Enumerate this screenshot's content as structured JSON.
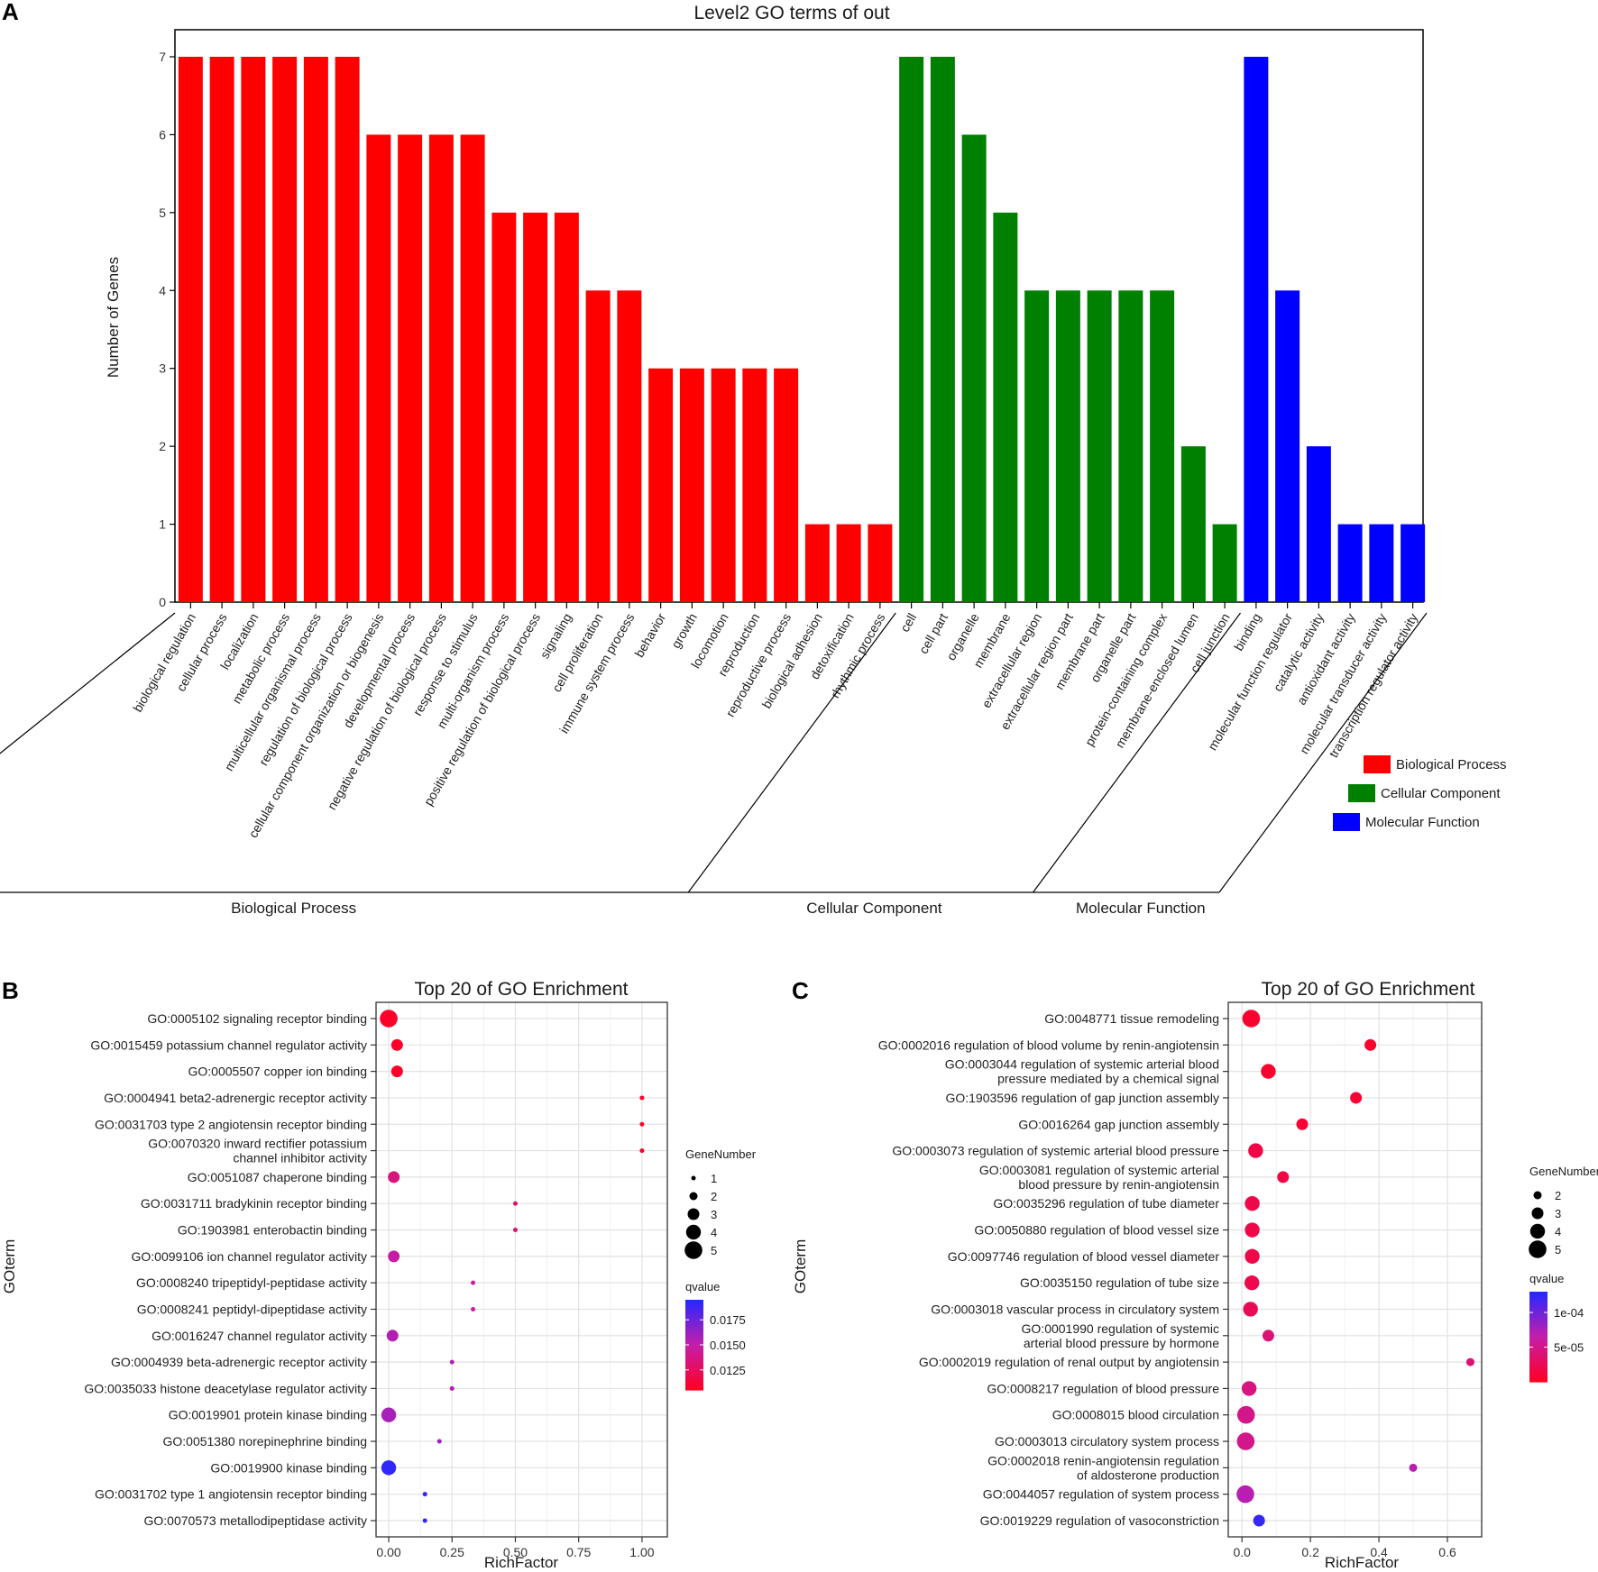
{
  "panels": {
    "a": "A",
    "b": "B",
    "c": "C"
  },
  "chart_data": [
    {
      "type": "bar",
      "title": "Level2 GO terms of out",
      "ylabel": "Number of Genes",
      "xlabel": "",
      "ylim": [
        0,
        7
      ],
      "yticks": [
        0,
        1,
        2,
        3,
        4,
        5,
        6,
        7
      ],
      "groups": [
        {
          "name": "Biological Process",
          "color": "#ff0000",
          "categories": [
            "biological regulation",
            "cellular process",
            "localization",
            "metabolic process",
            "multicellular organismal process",
            "regulation of biological process",
            "cellular component organization or biogenesis",
            "developmental process",
            "negative regulation of biological process",
            "response to stimulus",
            "multi-organism process",
            "positive regulation of biological process",
            "signaling",
            "cell proliferation",
            "immune system process",
            "behavior",
            "growth",
            "locomotion",
            "reproduction",
            "reproductive process",
            "biological adhesion",
            "detoxification",
            "rhythmic process"
          ],
          "values": [
            7,
            7,
            7,
            7,
            7,
            7,
            6,
            6,
            6,
            6,
            5,
            5,
            5,
            4,
            4,
            3,
            3,
            3,
            3,
            3,
            1,
            1,
            1
          ]
        },
        {
          "name": "Cellular Component",
          "color": "#008000",
          "categories": [
            "cell",
            "cell part",
            "organelle",
            "membrane",
            "extracellular region",
            "extracellular region part",
            "membrane part",
            "organelle part",
            "protein-containing complex",
            "membrane-enclosed lumen",
            "cell junction"
          ],
          "values": [
            7,
            7,
            6,
            5,
            4,
            4,
            4,
            4,
            4,
            2,
            1
          ]
        },
        {
          "name": "Molecular Function",
          "color": "#0000ff",
          "categories": [
            "binding",
            "molecular function regulator",
            "catalytic activity",
            "antioxidant activity",
            "molecular transducer activity",
            "transcription regulator activity"
          ],
          "values": [
            7,
            4,
            2,
            1,
            1,
            1
          ]
        }
      ],
      "legend": [
        "Biological Process",
        "Cellular Component",
        "Molecular Function"
      ],
      "legend_position": "right"
    },
    {
      "type": "scatter",
      "title": "Top 20 of GO Enrichment",
      "xlabel": "RichFactor",
      "ylabel": "GOterm",
      "xlim": [
        -0.05,
        1.1
      ],
      "xticks": [
        0.0,
        0.25,
        0.5,
        0.75,
        1.0
      ],
      "xtick_labels": [
        "0.00",
        "0.25",
        "0.50",
        "0.75",
        "1.00"
      ],
      "size_legend_title": "GeneNumber",
      "size_legend": [
        1,
        2,
        3,
        4,
        5
      ],
      "color_legend_title": "qvalue",
      "color_range": [
        0.0105,
        0.0195
      ],
      "color_ticks": [
        0.0175,
        0.015,
        0.0125
      ],
      "color_tick_labels": [
        "0.0175",
        "0.0150",
        "0.0125"
      ],
      "terms": [
        {
          "label": [
            "GO:0005102 signaling receptor binding"
          ],
          "x": 0.0,
          "size": 5,
          "q": 0.0107
        },
        {
          "label": [
            "GO:0015459 potassium channel regulator activity"
          ],
          "x": 0.033,
          "size": 3,
          "q": 0.0107
        },
        {
          "label": [
            "GO:0005507 copper ion binding"
          ],
          "x": 0.033,
          "size": 3,
          "q": 0.0107
        },
        {
          "label": [
            "GO:0004941 beta2-adrenergic receptor activity"
          ],
          "x": 1.0,
          "size": 1,
          "q": 0.0107
        },
        {
          "label": [
            "GO:0031703 type 2 angiotensin receptor binding"
          ],
          "x": 1.0,
          "size": 1,
          "q": 0.0107
        },
        {
          "label": [
            "GO:0070320 inward rectifier potassium",
            "channel inhibitor activity"
          ],
          "x": 1.0,
          "size": 1,
          "q": 0.0107
        },
        {
          "label": [
            "GO:0051087 chaperone binding"
          ],
          "x": 0.02,
          "size": 3,
          "q": 0.0135
        },
        {
          "label": [
            "GO:0031711 bradykinin receptor binding"
          ],
          "x": 0.5,
          "size": 1,
          "q": 0.0128
        },
        {
          "label": [
            "GO:1903981 enterobactin binding"
          ],
          "x": 0.5,
          "size": 1,
          "q": 0.0128
        },
        {
          "label": [
            "GO:0099106 ion channel regulator activity"
          ],
          "x": 0.02,
          "size": 3,
          "q": 0.0148
        },
        {
          "label": [
            "GO:0008240 tripeptidyl-peptidase activity"
          ],
          "x": 0.333,
          "size": 1,
          "q": 0.0148
        },
        {
          "label": [
            "GO:0008241 peptidyl-dipeptidase activity"
          ],
          "x": 0.333,
          "size": 1,
          "q": 0.0148
        },
        {
          "label": [
            "GO:0016247 channel regulator activity"
          ],
          "x": 0.015,
          "size": 3,
          "q": 0.0155
        },
        {
          "label": [
            "GO:0004939 beta-adrenergic receptor activity"
          ],
          "x": 0.25,
          "size": 1,
          "q": 0.0155
        },
        {
          "label": [
            "GO:0035033 histone deacetylase regulator activity"
          ],
          "x": 0.25,
          "size": 1,
          "q": 0.0155
        },
        {
          "label": [
            "GO:0019901 protein kinase binding"
          ],
          "x": 0.0,
          "size": 4,
          "q": 0.0158
        },
        {
          "label": [
            "GO:0051380 norepinephrine binding"
          ],
          "x": 0.2,
          "size": 1,
          "q": 0.0162
        },
        {
          "label": [
            "GO:0019900 kinase binding"
          ],
          "x": 0.0,
          "size": 4,
          "q": 0.0192
        },
        {
          "label": [
            "GO:0031702 type 1 angiotensin receptor binding"
          ],
          "x": 0.143,
          "size": 1,
          "q": 0.0192
        },
        {
          "label": [
            "GO:0070573 metallodipeptidase activity"
          ],
          "x": 0.143,
          "size": 1,
          "q": 0.0192
        }
      ]
    },
    {
      "type": "scatter",
      "title": "Top 20 of GO Enrichment",
      "xlabel": "RichFactor",
      "ylabel": "GOterm",
      "xlim": [
        -0.04,
        0.7
      ],
      "xticks": [
        0.0,
        0.2,
        0.4,
        0.6
      ],
      "xtick_labels": [
        "0.0",
        "0.2",
        "0.4",
        "0.6"
      ],
      "size_legend_title": "GeneNumber",
      "size_legend": [
        2,
        3,
        4,
        5
      ],
      "color_legend_title": "qvalue",
      "color_range": [
        0.0,
        0.00013
      ],
      "color_ticks": [
        0.0001,
        5e-05
      ],
      "color_tick_labels": [
        "1e-04",
        "5e-05"
      ],
      "terms": [
        {
          "label": [
            "GO:0048771 tissue remodeling"
          ],
          "x": 0.027,
          "size": 5,
          "q": 5e-06
        },
        {
          "label": [
            "GO:0002016 regulation of blood volume by renin-angiotensin"
          ],
          "x": 0.375,
          "size": 3,
          "q": 5e-06
        },
        {
          "label": [
            "GO:0003044 regulation of systemic arterial blood",
            "pressure mediated by a chemical signal"
          ],
          "x": 0.077,
          "size": 4,
          "q": 5e-06
        },
        {
          "label": [
            "GO:1903596 regulation of gap junction assembly"
          ],
          "x": 0.333,
          "size": 3,
          "q": 8e-06
        },
        {
          "label": [
            "GO:0016264 gap junction assembly"
          ],
          "x": 0.176,
          "size": 3,
          "q": 8e-06
        },
        {
          "label": [
            "GO:0003073 regulation of systemic arterial blood pressure"
          ],
          "x": 0.04,
          "size": 4,
          "q": 1.5e-05
        },
        {
          "label": [
            "GO:0003081 regulation of systemic arterial",
            "blood pressure by renin-angiotensin"
          ],
          "x": 0.12,
          "size": 3,
          "q": 1.5e-05
        },
        {
          "label": [
            "GO:0035296 regulation of tube diameter"
          ],
          "x": 0.03,
          "size": 4,
          "q": 1.8e-05
        },
        {
          "label": [
            "GO:0050880 regulation of blood vessel size"
          ],
          "x": 0.03,
          "size": 4,
          "q": 1.8e-05
        },
        {
          "label": [
            "GO:0097746 regulation of blood vessel diameter"
          ],
          "x": 0.03,
          "size": 4,
          "q": 1.8e-05
        },
        {
          "label": [
            "GO:0035150 regulation of tube size"
          ],
          "x": 0.029,
          "size": 4,
          "q": 2e-05
        },
        {
          "label": [
            "GO:0003018 vascular process in circulatory system"
          ],
          "x": 0.025,
          "size": 4,
          "q": 2.5e-05
        },
        {
          "label": [
            "GO:0001990 regulation of systemic",
            "arterial blood pressure by hormone"
          ],
          "x": 0.077,
          "size": 3,
          "q": 4e-05
        },
        {
          "label": [
            "GO:0002019 regulation of renal output by angiotensin"
          ],
          "x": 0.667,
          "size": 2,
          "q": 4e-05
        },
        {
          "label": [
            "GO:0008217 regulation of blood pressure"
          ],
          "x": 0.021,
          "size": 4,
          "q": 4.5e-05
        },
        {
          "label": [
            "GO:0008015 blood circulation"
          ],
          "x": 0.012,
          "size": 5,
          "q": 5e-05
        },
        {
          "label": [
            "GO:0003013 circulatory system process"
          ],
          "x": 0.011,
          "size": 5,
          "q": 5e-05
        },
        {
          "label": [
            "GO:0002018 renin-angiotensin regulation",
            "of aldosterone production"
          ],
          "x": 0.5,
          "size": 2,
          "q": 7e-05
        },
        {
          "label": [
            "GO:0044057 regulation of system process"
          ],
          "x": 0.01,
          "size": 5,
          "q": 7e-05
        },
        {
          "label": [
            "GO:0019229 regulation of vasoconstriction"
          ],
          "x": 0.05,
          "size": 3,
          "q": 0.000125
        }
      ]
    }
  ]
}
